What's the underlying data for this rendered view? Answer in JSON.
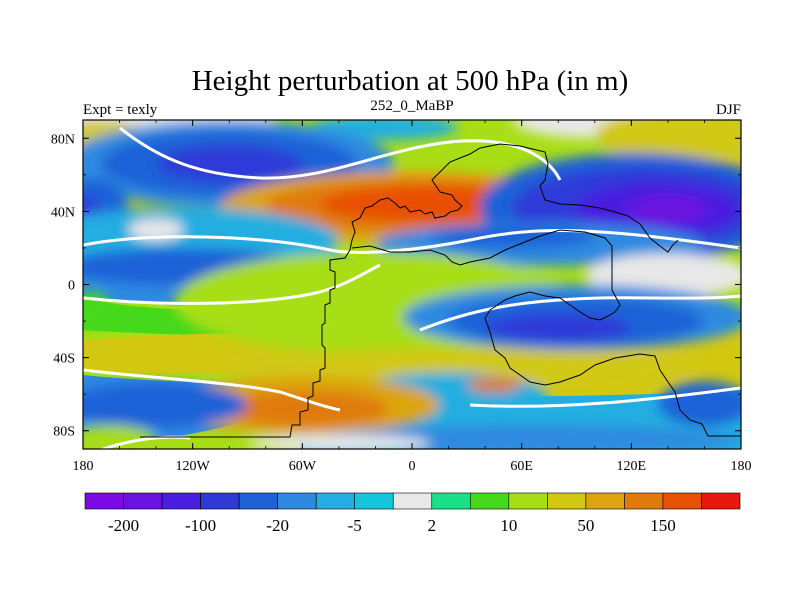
{
  "chart_data": {
    "type": "heatmap",
    "title": "Height perturbation at 500 hPa (in m)",
    "subtitle_left": "Expt = texly",
    "subtitle_center": "252_0_MaBP",
    "subtitle_right": "DJF",
    "x_range": [
      -180,
      180
    ],
    "y_range": [
      -90,
      90
    ],
    "x_ticks": [
      {
        "value": -180,
        "label": "180"
      },
      {
        "value": -120,
        "label": "120W"
      },
      {
        "value": -60,
        "label": "60W"
      },
      {
        "value": 0,
        "label": "0"
      },
      {
        "value": 60,
        "label": "60E"
      },
      {
        "value": 120,
        "label": "120E"
      },
      {
        "value": 180,
        "label": "180"
      }
    ],
    "y_ticks": [
      {
        "value": 80,
        "label": "80N"
      },
      {
        "value": 40,
        "label": "40N"
      },
      {
        "value": 0,
        "label": "0"
      },
      {
        "value": -40,
        "label": "40S"
      },
      {
        "value": -80,
        "label": "80S"
      }
    ],
    "colorbar": {
      "colors": [
        "#7a0ae6",
        "#6a12e0",
        "#4a1ee0",
        "#2e3ad8",
        "#1f62d8",
        "#2e8ae0",
        "#22aee0",
        "#14c6dc",
        "#e8e8e8",
        "#1ae08a",
        "#46d81a",
        "#a8de16",
        "#d2c812",
        "#dca40e",
        "#e07a08",
        "#e85006",
        "#e81810"
      ],
      "labels": [
        {
          "after_bin": 1,
          "text": "-200"
        },
        {
          "after_bin": 3,
          "text": "-100"
        },
        {
          "after_bin": 5,
          "text": "-20"
        },
        {
          "after_bin": 7,
          "text": "-5"
        },
        {
          "after_bin": 9,
          "text": "2"
        },
        {
          "after_bin": 11,
          "text": "10"
        },
        {
          "after_bin": 13,
          "text": "50"
        },
        {
          "after_bin": 15,
          "text": "150"
        }
      ]
    },
    "field_blobs": [
      {
        "lon": -135,
        "lat": 90,
        "rlon": 60,
        "rlat": 14,
        "color": "#e8e8e8"
      },
      {
        "lon": 100,
        "lat": 90,
        "rlon": 45,
        "rlat": 10,
        "color": "#e8e8e8"
      },
      {
        "lon": 145,
        "lat": 82,
        "rlon": 45,
        "rlat": 14,
        "color": "#d2c812"
      },
      {
        "lon": -170,
        "lat": 80,
        "rlon": 25,
        "rlat": 10,
        "color": "#d2c812"
      },
      {
        "lon": -15,
        "lat": 86,
        "rlon": 40,
        "rlat": 7,
        "color": "#22aee0"
      },
      {
        "lon": -100,
        "lat": 66,
        "rlon": 90,
        "rlat": 24,
        "color": "#2e8ae0"
      },
      {
        "lon": -100,
        "lat": 66,
        "rlon": 70,
        "rlat": 18,
        "color": "#1f62d8"
      },
      {
        "lon": -100,
        "lat": 66,
        "rlon": 40,
        "rlat": 10,
        "color": "#2e3ad8"
      },
      {
        "lon": 0,
        "lat": 42,
        "rlon": 105,
        "rlat": 20,
        "color": "#dca40e"
      },
      {
        "lon": 5,
        "lat": 43,
        "rlon": 85,
        "rlat": 15,
        "color": "#e07a08"
      },
      {
        "lon": 10,
        "lat": 44,
        "rlon": 60,
        "rlat": 10,
        "color": "#e85006"
      },
      {
        "lon": -175,
        "lat": 40,
        "rlon": 20,
        "rlat": 18,
        "color": "#1f62d8"
      },
      {
        "lon": -178,
        "lat": 40,
        "rlon": 8,
        "rlat": 8,
        "color": "#2e3ad8"
      },
      {
        "lon": 122,
        "lat": 42,
        "rlon": 85,
        "rlat": 30,
        "color": "#1f62d8"
      },
      {
        "lon": 125,
        "lat": 42,
        "rlon": 70,
        "rlat": 22,
        "color": "#2e3ad8"
      },
      {
        "lon": 135,
        "lat": 41,
        "rlon": 45,
        "rlat": 15,
        "color": "#4a1ee0"
      },
      {
        "lon": 140,
        "lat": 41,
        "rlon": 22,
        "rlat": 8,
        "color": "#6a12e0"
      },
      {
        "lon": -125,
        "lat": 24,
        "rlon": 85,
        "rlat": 18,
        "color": "#22aee0"
      },
      {
        "lon": -125,
        "lat": 10,
        "rlon": 65,
        "rlat": 10,
        "color": "#1f62d8"
      },
      {
        "lon": 70,
        "lat": 22,
        "rlon": 90,
        "rlat": 12,
        "color": "#2e8ae0"
      },
      {
        "lon": 55,
        "lat": 26,
        "rlon": 45,
        "rlat": 6,
        "color": "#1f62d8"
      },
      {
        "lon": -140,
        "lat": 30,
        "rlon": 15,
        "rlat": 6,
        "color": "#e8e8e8"
      },
      {
        "lon": 140,
        "lat": 5,
        "rlon": 45,
        "rlat": 12,
        "color": "#e8e8e8"
      },
      {
        "lon": -20,
        "lat": -10,
        "rlon": 110,
        "rlat": 28,
        "color": "#a8de16"
      },
      {
        "lon": -175,
        "lat": -14,
        "rlon": 10,
        "rlat": 10,
        "color": "#46d81a"
      },
      {
        "lon": 25,
        "lat": -45,
        "rlon": 130,
        "rlat": 10,
        "color": "#d2c812"
      },
      {
        "lon": 90,
        "lat": -18,
        "rlon": 95,
        "rlat": 18,
        "color": "#2e8ae0"
      },
      {
        "lon": 90,
        "lat": -20,
        "rlon": 70,
        "rlat": 13,
        "color": "#1f62d8"
      },
      {
        "lon": 80,
        "lat": -24,
        "rlon": 40,
        "rlat": 8,
        "color": "#2e3ad8"
      },
      {
        "lon": 20,
        "lat": -62,
        "rlon": 55,
        "rlat": 14,
        "color": "#22aee0"
      },
      {
        "lon": -60,
        "lat": -66,
        "rlon": 75,
        "rlat": 16,
        "color": "#dca40e"
      },
      {
        "lon": -58,
        "lat": -68,
        "rlon": 45,
        "rlat": 10,
        "color": "#e07a08"
      },
      {
        "lon": -140,
        "lat": -66,
        "rlon": 50,
        "rlat": 12,
        "color": "#1f62d8"
      },
      {
        "lon": 160,
        "lat": -65,
        "rlon": 25,
        "rlat": 12,
        "color": "#1f62d8"
      },
      {
        "lon": 45,
        "lat": -55,
        "rlon": 15,
        "rlat": 4,
        "color": "#e07a08"
      },
      {
        "lon": -165,
        "lat": -85,
        "rlon": 25,
        "rlat": 8,
        "color": "#a8de16"
      },
      {
        "lon": 60,
        "lat": -85,
        "rlon": 120,
        "rlat": 8,
        "color": "#2e8ae0"
      },
      {
        "lon": -40,
        "lat": -87,
        "rlon": 50,
        "rlat": 5,
        "color": "#e8e8e8"
      }
    ]
  }
}
